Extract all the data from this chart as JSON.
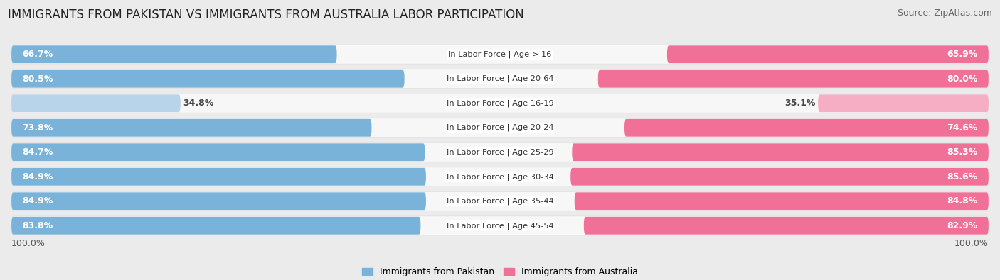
{
  "title": "IMMIGRANTS FROM PAKISTAN VS IMMIGRANTS FROM AUSTRALIA LABOR PARTICIPATION",
  "source": "Source: ZipAtlas.com",
  "categories": [
    "In Labor Force | Age > 16",
    "In Labor Force | Age 20-64",
    "In Labor Force | Age 16-19",
    "In Labor Force | Age 20-24",
    "In Labor Force | Age 25-29",
    "In Labor Force | Age 30-34",
    "In Labor Force | Age 35-44",
    "In Labor Force | Age 45-54"
  ],
  "pakistan_values": [
    66.7,
    80.5,
    34.8,
    73.8,
    84.7,
    84.9,
    84.9,
    83.8
  ],
  "australia_values": [
    65.9,
    80.0,
    35.1,
    74.6,
    85.3,
    85.6,
    84.8,
    82.9
  ],
  "pakistan_color": "#7ab3d9",
  "pakistan_color_light": "#b8d4ea",
  "australia_color": "#f07098",
  "australia_color_light": "#f5aec4",
  "label_pakistan": "Immigrants from Pakistan",
  "label_australia": "Immigrants from Australia",
  "background_color": "#ebebeb",
  "row_bg_color": "#f7f7f7",
  "max_value": 100.0,
  "title_fontsize": 12,
  "source_fontsize": 9,
  "bar_label_fontsize": 9,
  "category_fontsize": 8.2,
  "threshold_light": 50
}
